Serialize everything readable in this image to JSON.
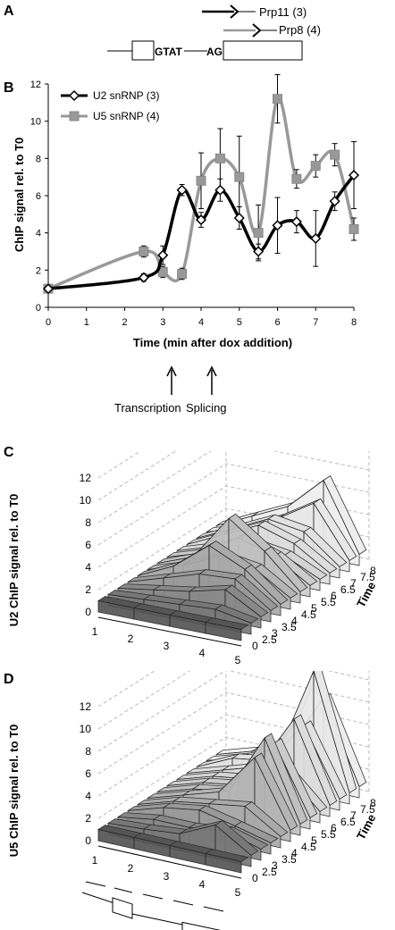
{
  "panels": {
    "a": "A",
    "b": "B",
    "c": "C",
    "d": "D"
  },
  "gene_diagram": {
    "probe1_label": "Prp11 (3)",
    "probe2_label": "Prp8 (4)",
    "seq1": "GTAT",
    "seq2": "AG",
    "probe1_color": "#000000",
    "probe2_color": "#999999"
  },
  "chart_data": [
    {
      "type": "line",
      "panel": "B",
      "ylabel": "ChIP signal rel. to T0",
      "xlabel": "Time (min after dox addition)",
      "xlim": [
        0,
        8
      ],
      "ylim": [
        0,
        12
      ],
      "x_ticks": [
        "0",
        "1",
        "2",
        "3",
        "4",
        "5",
        "6",
        "7",
        "8"
      ],
      "y_ticks": [
        "0",
        "2",
        "4",
        "6",
        "8",
        "10",
        "12"
      ],
      "legend_position": "top-left",
      "series": [
        {
          "name": "U2 snRNP (3)",
          "color": "#000000",
          "marker": "diamond",
          "x": [
            0,
            2.5,
            3,
            3.5,
            4,
            4.5,
            5,
            5.5,
            6,
            6.5,
            7,
            7.5,
            8
          ],
          "y": [
            1.0,
            1.6,
            2.8,
            6.3,
            4.7,
            6.3,
            4.8,
            3.0,
            4.4,
            4.6,
            3.7,
            5.7,
            7.1
          ],
          "err": [
            0,
            0.2,
            0.5,
            0.3,
            0.4,
            0.6,
            0.6,
            0.4,
            1.5,
            0.6,
            1.5,
            0.5,
            1.8
          ]
        },
        {
          "name": "U5 snRNP (4)",
          "color": "#999999",
          "marker": "square",
          "x": [
            0,
            2.5,
            3,
            3.5,
            4,
            4.5,
            5,
            5.5,
            6,
            6.5,
            7,
            7.5,
            8
          ],
          "y": [
            1.0,
            3.0,
            1.9,
            1.8,
            6.8,
            8.0,
            7.0,
            4.0,
            11.2,
            6.9,
            7.6,
            8.2,
            4.2
          ],
          "err": [
            0,
            0.3,
            0.3,
            0.3,
            1.5,
            1.6,
            2.2,
            1.5,
            1.3,
            0.5,
            0.6,
            0.6,
            0.6
          ]
        }
      ],
      "annotations": [
        {
          "text": "Transcription",
          "x": 3.5
        },
        {
          "text": "Splicing",
          "x": 4.0
        }
      ]
    },
    {
      "type": "area",
      "panel": "C",
      "ylabel": "U2 ChIP signal rel. to T0",
      "x_ticks": [
        "1",
        "2",
        "3",
        "4",
        "5"
      ],
      "y_ticks": [
        "0",
        "2",
        "4",
        "6",
        "8",
        "10",
        "12"
      ],
      "depth_label": "Time",
      "depth_ticks": [
        "0",
        "2.5",
        "3",
        "3.5",
        "4",
        "4.5",
        "5",
        "5.5",
        "6",
        "6.5",
        "7",
        "7.5",
        "8"
      ],
      "ylim": [
        0,
        12
      ],
      "surface": [
        [
          1.0,
          1.0,
          1.0,
          1.0,
          1.0
        ],
        [
          1.0,
          1.2,
          1.4,
          1.6,
          1.0
        ],
        [
          1.0,
          1.5,
          2.0,
          2.8,
          1.0
        ],
        [
          1.0,
          2.0,
          3.0,
          3.2,
          1.0
        ],
        [
          1.0,
          2.5,
          5.0,
          3.5,
          1.0
        ],
        [
          1.0,
          2.0,
          3.5,
          3.0,
          1.0
        ],
        [
          1.0,
          2.2,
          6.3,
          4.0,
          1.0
        ],
        [
          1.0,
          2.0,
          4.0,
          3.0,
          1.0
        ],
        [
          1.0,
          2.0,
          3.0,
          2.5,
          1.0
        ],
        [
          1.0,
          2.5,
          4.0,
          3.0,
          1.0
        ],
        [
          1.0,
          2.5,
          4.0,
          3.5,
          1.0
        ],
        [
          1.0,
          2.0,
          3.5,
          5.5,
          1.0
        ],
        [
          1.0,
          2.5,
          4.0,
          7.0,
          1.0
        ]
      ]
    },
    {
      "type": "area",
      "panel": "D",
      "ylabel": "U5 ChIP signal rel. to T0",
      "x_ticks": [
        "1",
        "2",
        "3",
        "4",
        "5"
      ],
      "y_ticks": [
        "0",
        "2",
        "4",
        "6",
        "8",
        "10",
        "12"
      ],
      "depth_label": "Time",
      "depth_ticks": [
        "0",
        "2.5",
        "3",
        "3.5",
        "4",
        "4.5",
        "5",
        "5.5",
        "6",
        "6.5",
        "7",
        "7.5",
        "8"
      ],
      "ylim": [
        0,
        12
      ],
      "surface": [
        [
          1.0,
          1.0,
          1.0,
          1.0,
          1.0
        ],
        [
          1.0,
          1.2,
          1.5,
          3.0,
          1.0
        ],
        [
          1.0,
          1.5,
          1.5,
          1.9,
          1.0
        ],
        [
          1.0,
          2.0,
          2.5,
          1.8,
          1.0
        ],
        [
          1.0,
          2.0,
          2.5,
          3.0,
          1.0
        ],
        [
          1.0,
          2.0,
          3.0,
          6.8,
          1.0
        ],
        [
          1.0,
          2.0,
          2.5,
          8.0,
          1.0
        ],
        [
          1.0,
          2.0,
          2.5,
          7.0,
          1.0
        ],
        [
          1.0,
          2.0,
          2.5,
          4.0,
          1.0
        ],
        [
          1.0,
          2.0,
          3.0,
          8.0,
          1.0
        ],
        [
          1.0,
          2.5,
          3.0,
          6.9,
          1.0
        ],
        [
          1.0,
          2.0,
          3.0,
          11.2,
          1.0
        ],
        [
          1.0,
          2.0,
          3.0,
          8.2,
          1.0
        ]
      ]
    }
  ]
}
